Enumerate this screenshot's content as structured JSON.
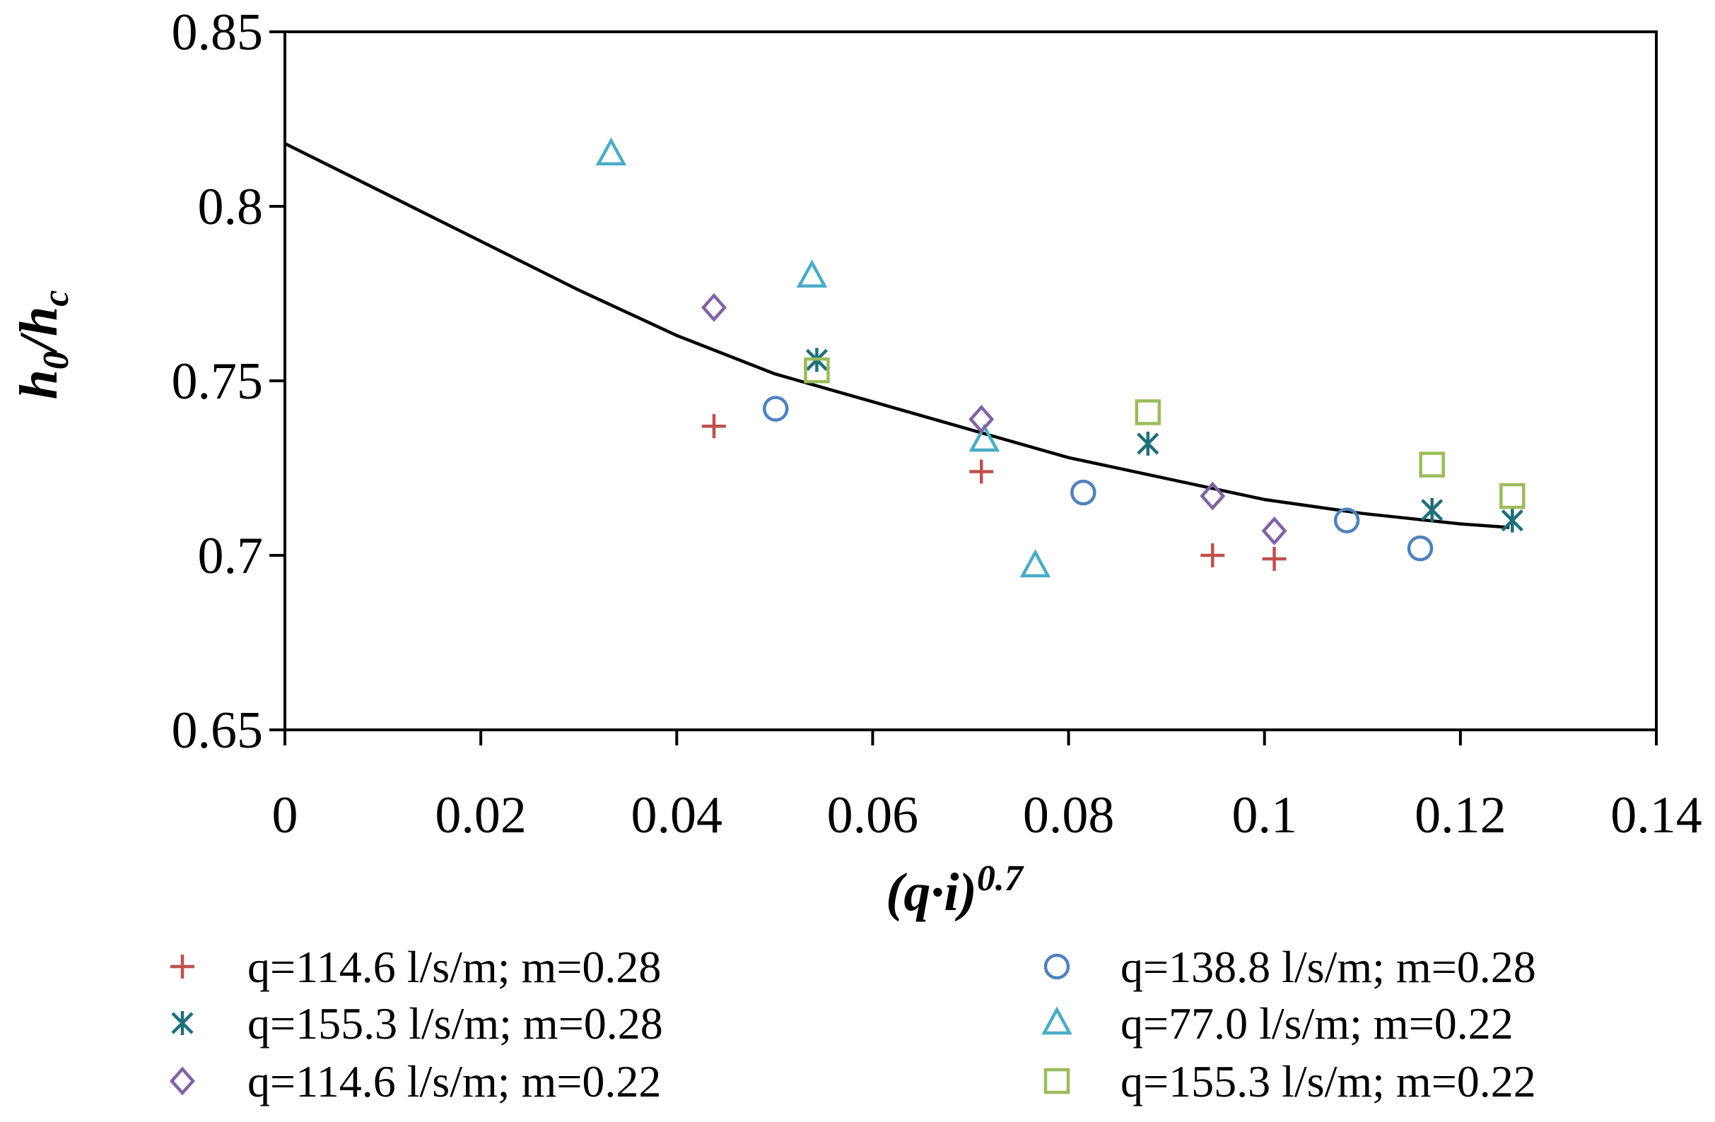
{
  "chart_data": {
    "type": "scatter",
    "title": "",
    "xlabel": "(q·i)",
    "xlabel_sup": "0.7",
    "ylabel": "h",
    "ylabel_sub1": "0",
    "ylabel_mid": "/h",
    "ylabel_sub2": "c",
    "xlim": [
      0,
      0.14
    ],
    "ylim": [
      0.65,
      0.85
    ],
    "xticks": [
      0,
      0.02,
      0.04,
      0.06,
      0.08,
      0.1,
      0.12,
      0.14
    ],
    "xtick_labels": [
      "0",
      "0.02",
      "0.04",
      "0.06",
      "0.08",
      "0.1",
      "0.12",
      "0.14"
    ],
    "yticks": [
      0.65,
      0.7,
      0.75,
      0.8,
      0.85
    ],
    "ytick_labels": [
      "0.65",
      "0.7",
      "0.75",
      "0.8",
      "0.85"
    ],
    "grid": false,
    "legend_position": "bottom",
    "series": [
      {
        "name": "q=114.6 l/s/m; m=0.28",
        "marker": "plus",
        "color": "#C0504D",
        "x": [
          0.0438,
          0.0711,
          0.0947,
          0.101
        ],
        "y": [
          0.737,
          0.724,
          0.7,
          0.699
        ]
      },
      {
        "name": "q=138.8 l/s/m; m=0.28",
        "marker": "circle",
        "color": "#4F81BD",
        "x": [
          0.0501,
          0.0815,
          0.1084,
          0.1159
        ],
        "y": [
          0.742,
          0.718,
          0.71,
          0.702
        ]
      },
      {
        "name": "q=155.3 l/s/m; m=0.28",
        "marker": "star",
        "color": "#1F6F7A",
        "x": [
          0.0543,
          0.0881,
          0.1171,
          0.1253
        ],
        "y": [
          0.756,
          0.732,
          0.713,
          0.71
        ]
      },
      {
        "name": "q=77.0 l/s/m; m=0.22",
        "marker": "triangle",
        "color": "#4BACC6",
        "x": [
          0.0333,
          0.0538,
          0.0714,
          0.0766
        ],
        "y": [
          0.815,
          0.78,
          0.733,
          0.697
        ]
      },
      {
        "name": "q=114.6 l/s/m; m=0.22",
        "marker": "diamond",
        "color": "#8064A2",
        "x": [
          0.0438,
          0.0711,
          0.0947,
          0.101
        ],
        "y": [
          0.771,
          0.739,
          0.717,
          0.707
        ]
      },
      {
        "name": "q=155.3 l/s/m; m=0.22",
        "marker": "square",
        "color": "#9BBB59",
        "x": [
          0.0543,
          0.0881,
          0.1171,
          0.1253
        ],
        "y": [
          0.753,
          0.741,
          0.726,
          0.717
        ]
      }
    ],
    "trendline": {
      "type": "polynomial",
      "color": "#000000",
      "x": [
        0,
        0.01,
        0.02,
        0.03,
        0.04,
        0.05,
        0.06,
        0.07,
        0.08,
        0.09,
        0.1,
        0.11,
        0.12,
        0.125
      ],
      "y": [
        0.818,
        0.804,
        0.79,
        0.776,
        0.763,
        0.752,
        0.744,
        0.736,
        0.728,
        0.722,
        0.716,
        0.712,
        0.709,
        0.708
      ]
    }
  }
}
